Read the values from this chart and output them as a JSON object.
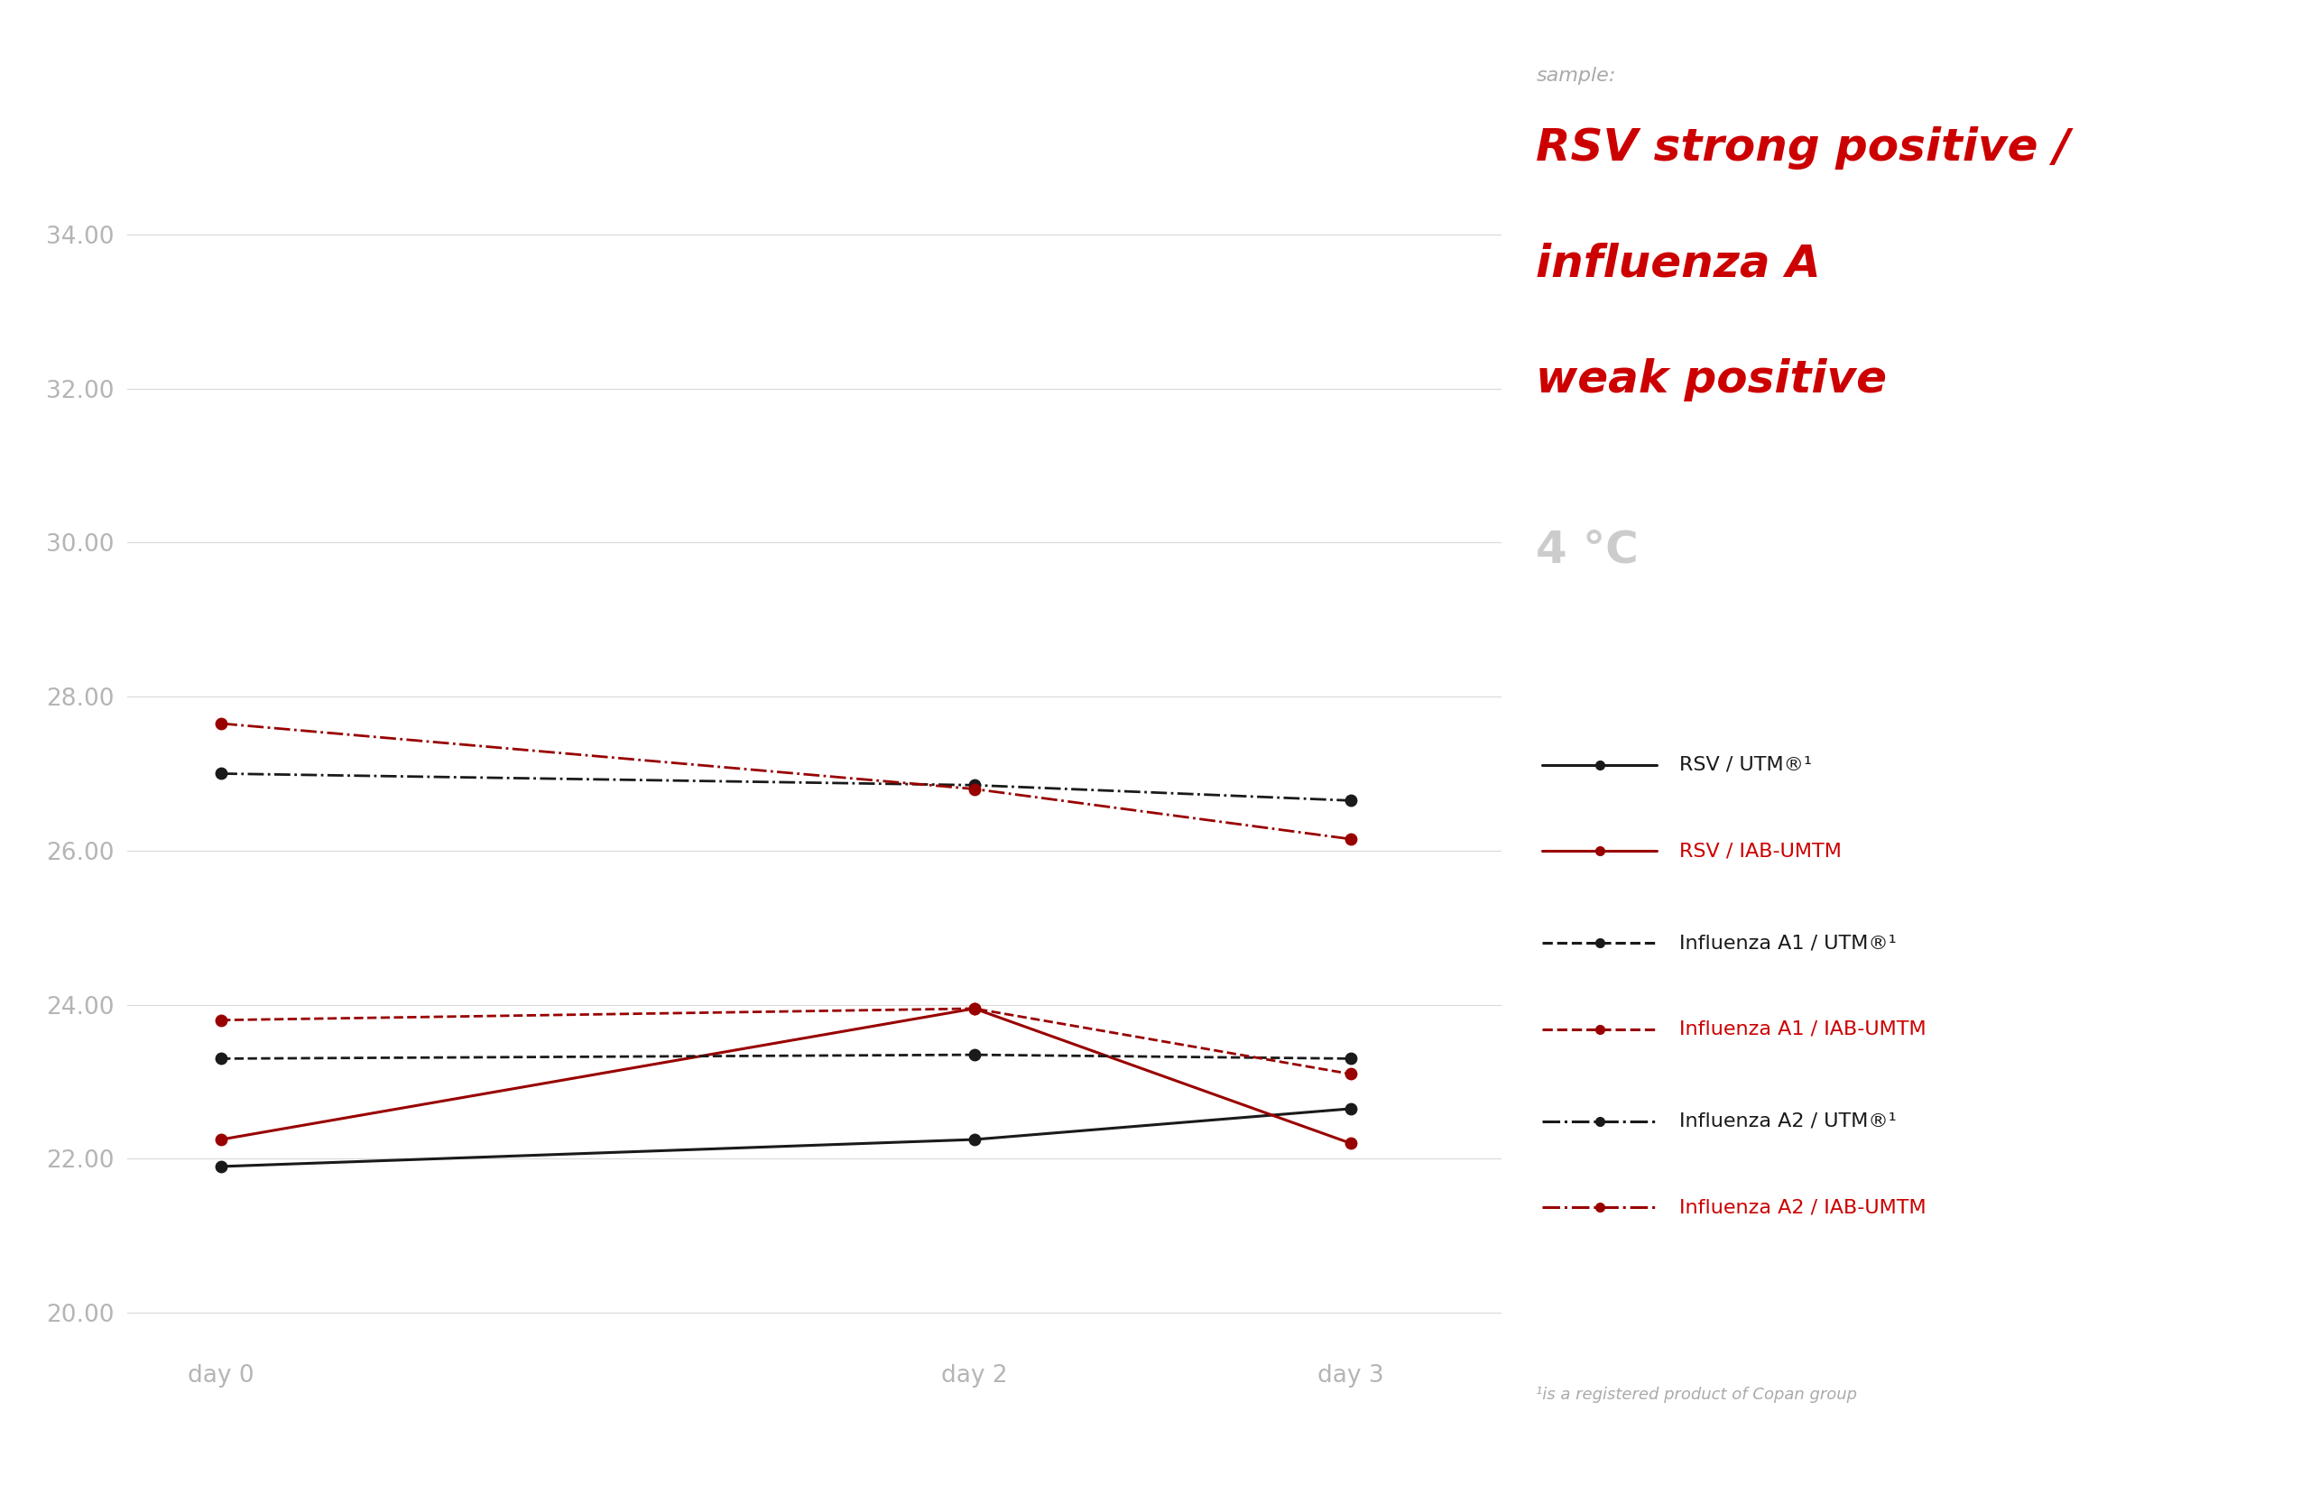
{
  "x_ticks": [
    0,
    2,
    3
  ],
  "x_labels": [
    "day 0",
    "day 2",
    "day 3"
  ],
  "ylim": [
    19.5,
    35.5
  ],
  "yticks": [
    20.0,
    22.0,
    24.0,
    26.0,
    28.0,
    30.0,
    32.0,
    34.0
  ],
  "series": {
    "RSV_UTM": {
      "x": [
        0,
        2,
        3
      ],
      "y": [
        21.9,
        22.25,
        22.65
      ],
      "color": "#1a1a1a",
      "linestyle": "solid",
      "linewidth": 2.2,
      "label": "RSV / UTM®¹"
    },
    "RSV_IAB": {
      "x": [
        0,
        2,
        3
      ],
      "y": [
        22.25,
        23.95,
        22.2
      ],
      "color": "#990000",
      "linestyle": "solid",
      "linewidth": 2.2,
      "label": "RSV / IAB-UΜTM"
    },
    "FluA1_UTM": {
      "x": [
        0,
        2,
        3
      ],
      "y": [
        23.3,
        23.35,
        23.3
      ],
      "color": "#1a1a1a",
      "linestyle": "dashed",
      "linewidth": 2.0,
      "label": "Influenza A1 / UTM®¹"
    },
    "FluA1_IAB": {
      "x": [
        0,
        2,
        3
      ],
      "y": [
        23.8,
        23.95,
        23.1
      ],
      "color": "#990000",
      "linestyle": "dashed",
      "linewidth": 2.0,
      "label": "Influenza A1 / IAB-UΜTM"
    },
    "FluA2_UTM": {
      "x": [
        0,
        2,
        3
      ],
      "y": [
        27.0,
        26.85,
        26.65
      ],
      "color": "#1a1a1a",
      "linestyle": "dashdot",
      "linewidth": 2.0,
      "label": "Influenza A2 / UTM®¹"
    },
    "FluA2_IAB": {
      "x": [
        0,
        2,
        3
      ],
      "y": [
        27.65,
        26.8,
        26.15
      ],
      "color": "#990000",
      "linestyle": "dashdot",
      "linewidth": 2.0,
      "label": "Influenza A2 / IAB-UΜTM"
    }
  },
  "sample_label": "sample:",
  "title_line1": "RSV strong positive /",
  "title_line2": "influenza A",
  "title_line3": "weak positive",
  "temp_label": "4 °C",
  "legend_entries": [
    {
      "label": "RSV / UTM®¹",
      "color": "#1a1a1a",
      "linestyle": "solid"
    },
    {
      "label": "RSV / IAB-UΜTM",
      "color": "#990000",
      "linestyle": "solid"
    },
    {
      "label": "Influenza A1 / UTM®¹",
      "color": "#1a1a1a",
      "linestyle": "dashed"
    },
    {
      "label": "Influenza A1 / IAB-UΜTM",
      "color": "#990000",
      "linestyle": "dashed"
    },
    {
      "label": "Influenza A2 / UTM®¹",
      "color": "#1a1a1a",
      "linestyle": "dashdot"
    },
    {
      "label": "Influenza A2 / IAB-UΜTM",
      "color": "#990000",
      "linestyle": "dashdot"
    }
  ],
  "footnote": "¹is a registered product of Copan group",
  "bg_color": "#ffffff",
  "grid_color": "#d9d9d9",
  "tick_label_color": "#b5b5b5",
  "title_color": "#cc0000",
  "temp_color": "#cccccc"
}
